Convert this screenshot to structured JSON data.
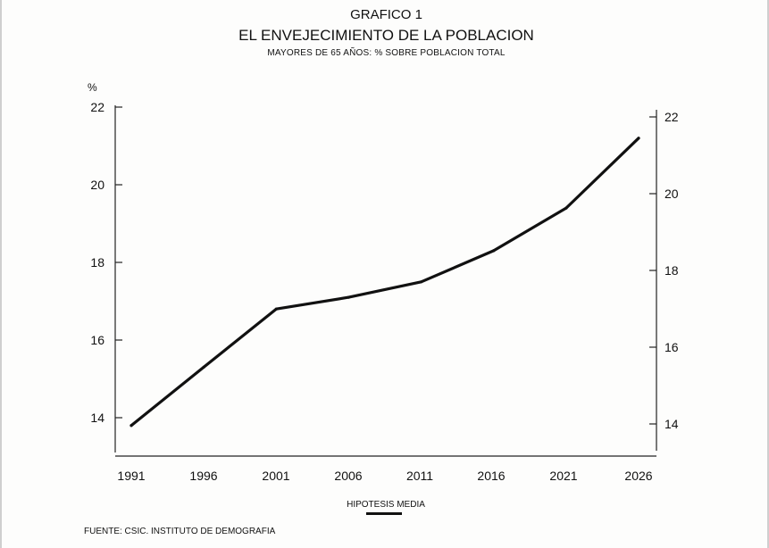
{
  "chart_data": {
    "type": "line",
    "title_line1": "GRAFICO 1",
    "title": "EL ENVEJECIMIENTO DE LA POBLACION",
    "subtitle": "MAYORES DE 65 AÑOS: % SOBRE POBLACION TOTAL",
    "ylabel": "%",
    "xlabel": "",
    "x": [
      "1991",
      "1996",
      "2001",
      "2006",
      "2011",
      "2016",
      "2021",
      "2026"
    ],
    "series": [
      {
        "name": "HIPOTESIS MEDIA",
        "values": [
          13.8,
          15.3,
          16.8,
          17.1,
          17.5,
          18.3,
          19.4,
          21.2
        ],
        "color": "#111111"
      }
    ],
    "ylim": [
      13,
      22
    ],
    "yticks": [
      "14",
      "16",
      "18",
      "20",
      "22"
    ],
    "grid": false,
    "legend_position": "bottom"
  },
  "source": "FUENTE: CSIC. INSTITUTO DE DEMOGRAFIA"
}
